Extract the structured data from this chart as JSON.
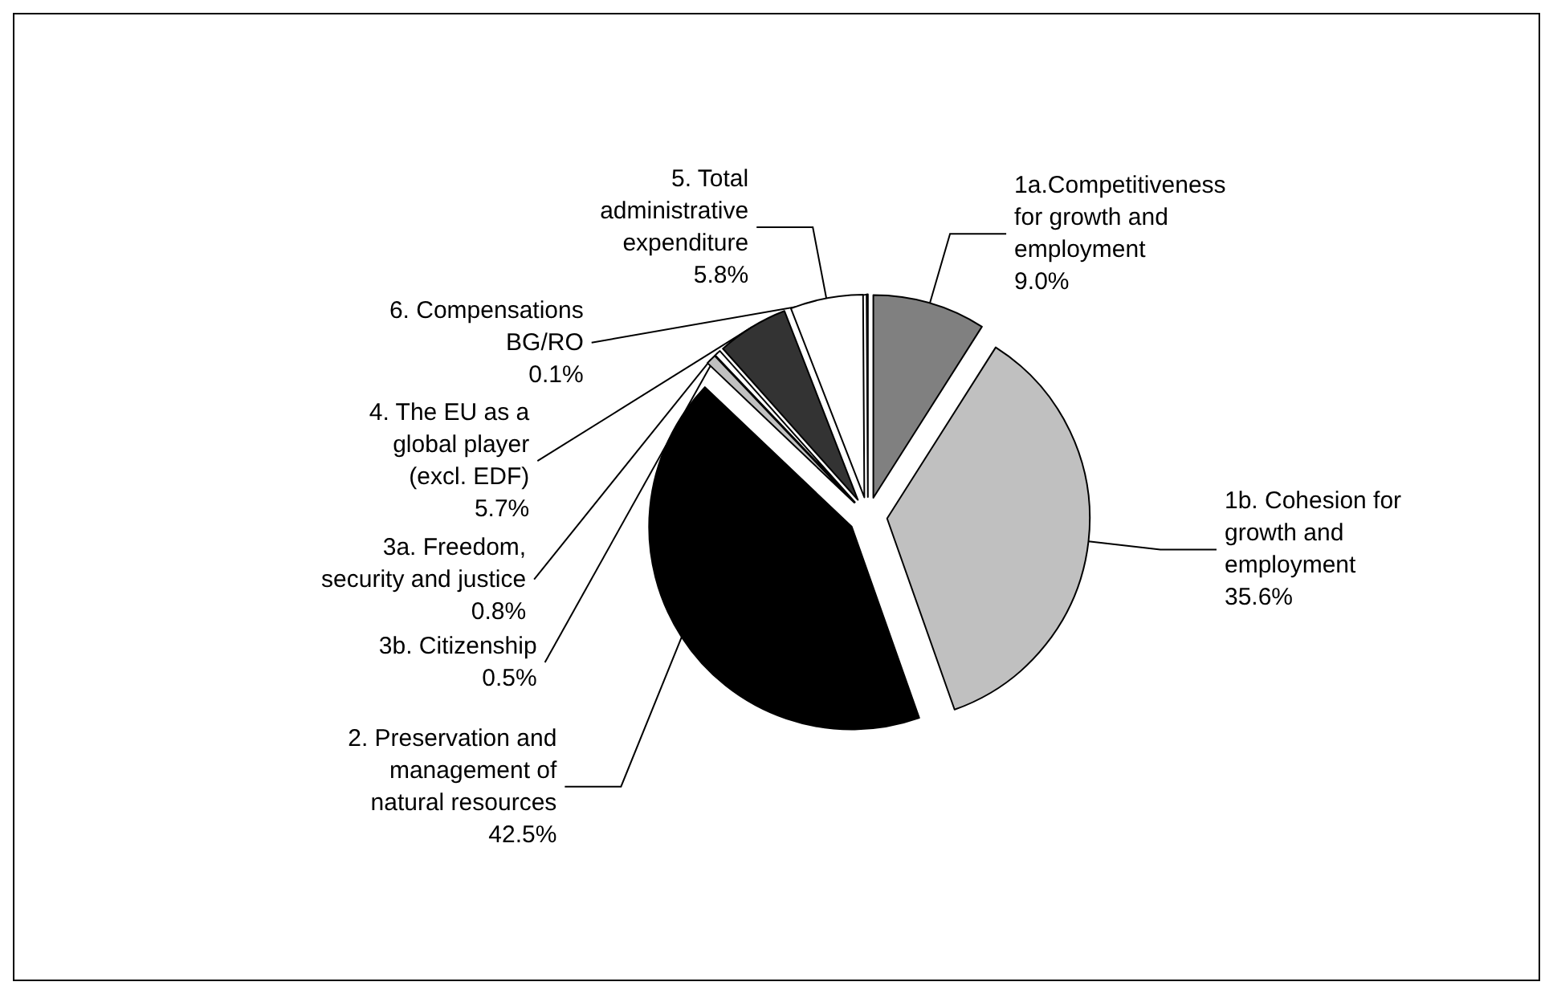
{
  "chart_data": {
    "type": "pie",
    "categories": [
      "1a.Competitiveness\nfor growth and\nemployment",
      "1b. Cohesion for\ngrowth and\nemployment",
      "2. Preservation and\nmanagement of\nnatural resources",
      "3a. Freedom,\nsecurity and justice",
      "3b. Citizenship",
      "4. The EU as a\nglobal player\n(excl. EDF)",
      "5. Total\nadministrative\nexpenditure",
      "6. Compensations\nBG/RO"
    ],
    "values": [
      9.0,
      35.6,
      42.5,
      0.8,
      0.5,
      5.7,
      5.8,
      0.1
    ],
    "value_labels": [
      "9.0%",
      "35.6%",
      "42.5%",
      "0.8%",
      "0.5%",
      "5.7%",
      "5.8%",
      "0.1%"
    ],
    "colors": [
      "#808080",
      "#c0c0c0",
      "#000000",
      "#c0c0c0",
      "#ffffff",
      "#333333",
      "#ffffff",
      "#ffffff"
    ]
  }
}
